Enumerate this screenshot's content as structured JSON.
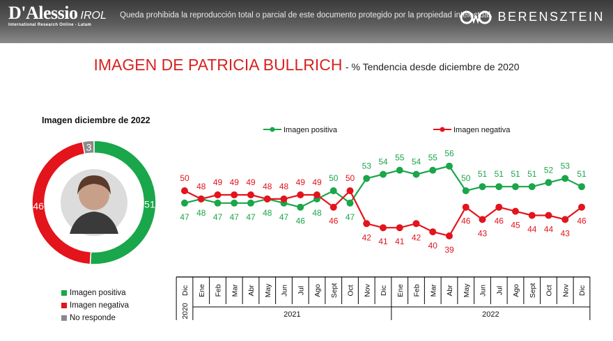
{
  "header": {
    "logo_name": "D'Alessio",
    "logo_irol": "IROL",
    "logo_sub": "International Research Online - Latam",
    "disclaimer": "Queda prohibida la reproducción total o parcial de este documento protegido por la propiedad intelectual.",
    "brand_right": "BERENSZTEIN"
  },
  "headline": {
    "title": "IMAGEN DE PATRICIA BULLRICH",
    "subtitle": "- % Tendencia desde diciembre de 2020"
  },
  "colors": {
    "positive": "#1aa64a",
    "negative": "#e3141b",
    "no_response": "#8a8a8a"
  },
  "donut": {
    "title": "Imagen diciembre de 2022",
    "slices": [
      {
        "name": "Imagen positiva",
        "value": 51
      },
      {
        "name": "Imagen negativa",
        "value": 46
      },
      {
        "name": "No responde",
        "value": 3
      }
    ],
    "legend": [
      "Imagen positiva",
      "Imagen negativa",
      "No responde"
    ]
  },
  "chart_data": [
    {
      "type": "pie",
      "title": "Imagen diciembre de 2022",
      "categories": [
        "Imagen positiva",
        "Imagen negativa",
        "No responde"
      ],
      "values": [
        51,
        46,
        3
      ]
    },
    {
      "type": "line",
      "title": "Imagen de Patricia Bullrich - % Tendencia desde diciembre de 2020",
      "categories": [
        "Dic",
        "Ene",
        "Feb",
        "Mar",
        "Abr",
        "May",
        "Jun",
        "Jul",
        "Ago",
        "Sept",
        "Oct",
        "Nov",
        "Dic",
        "Ene",
        "Feb",
        "Mar",
        "Abr",
        "May",
        "Jun",
        "Jul",
        "Ago",
        "Sept",
        "Oct",
        "Nov",
        "Dic"
      ],
      "year_groups": [
        {
          "label": "2020",
          "count": 1
        },
        {
          "label": "2021",
          "count": 12
        },
        {
          "label": "2022",
          "count": 12
        }
      ],
      "series": [
        {
          "name": "Imagen positiva",
          "values": [
            47,
            48,
            47,
            47,
            47,
            48,
            47,
            46,
            48,
            50,
            47,
            53,
            54,
            55,
            54,
            55,
            56,
            50,
            51,
            51,
            51,
            51,
            52,
            53,
            51
          ]
        },
        {
          "name": "Imagen negativa",
          "values": [
            50,
            48,
            49,
            49,
            49,
            48,
            48,
            49,
            49,
            46,
            50,
            42,
            41,
            41,
            42,
            40,
            39,
            46,
            43,
            46,
            45,
            44,
            44,
            43,
            46
          ]
        }
      ],
      "ylim": [
        30,
        65
      ],
      "legend": "top"
    }
  ]
}
